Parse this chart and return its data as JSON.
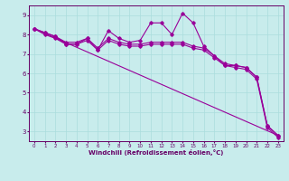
{
  "title": "",
  "xlabel": "Windchill (Refroidissement éolien,°C)",
  "bg_color": "#c8ecec",
  "line_color": "#990099",
  "grid_color": "#aadddd",
  "ylim": [
    2.5,
    9.5
  ],
  "xlim": [
    -0.5,
    23.5
  ],
  "yticks": [
    3,
    4,
    5,
    6,
    7,
    8,
    9
  ],
  "xticks": [
    0,
    1,
    2,
    3,
    4,
    5,
    6,
    7,
    8,
    9,
    10,
    11,
    12,
    13,
    14,
    15,
    16,
    17,
    18,
    19,
    20,
    21,
    22,
    23
  ],
  "series1_x": [
    0,
    1,
    2,
    3,
    4,
    5,
    6,
    7,
    8,
    9,
    10,
    11,
    12,
    13,
    14,
    15,
    16,
    17,
    18,
    19,
    20,
    21,
    22,
    23
  ],
  "series1_y": [
    8.3,
    8.1,
    7.9,
    7.5,
    7.5,
    7.8,
    7.2,
    8.2,
    7.8,
    7.6,
    7.7,
    8.6,
    8.6,
    8.0,
    9.1,
    8.6,
    7.4,
    6.9,
    6.4,
    6.4,
    6.3,
    5.8,
    3.3,
    2.8
  ],
  "series2_x": [
    0,
    1,
    2,
    3,
    4,
    5,
    6,
    7,
    8,
    9,
    10,
    11,
    12,
    13,
    14,
    15,
    16,
    17,
    18,
    19,
    20,
    21,
    22,
    23
  ],
  "series2_y": [
    8.3,
    8.1,
    7.9,
    7.6,
    7.6,
    7.8,
    7.3,
    7.8,
    7.6,
    7.5,
    7.5,
    7.6,
    7.6,
    7.6,
    7.6,
    7.4,
    7.3,
    6.9,
    6.5,
    6.4,
    6.3,
    5.8,
    3.3,
    2.8
  ],
  "series3_x": [
    0,
    23
  ],
  "series3_y": [
    8.3,
    2.8
  ],
  "series4_x": [
    0,
    1,
    2,
    3,
    4,
    5,
    6,
    7,
    8,
    9,
    10,
    11,
    12,
    13,
    14,
    15,
    16,
    17,
    18,
    19,
    20,
    21,
    22,
    23
  ],
  "series4_y": [
    8.3,
    8.0,
    7.8,
    7.5,
    7.5,
    7.7,
    7.2,
    7.7,
    7.5,
    7.4,
    7.4,
    7.5,
    7.5,
    7.5,
    7.5,
    7.3,
    7.2,
    6.8,
    6.4,
    6.3,
    6.2,
    5.7,
    3.2,
    2.7
  ]
}
